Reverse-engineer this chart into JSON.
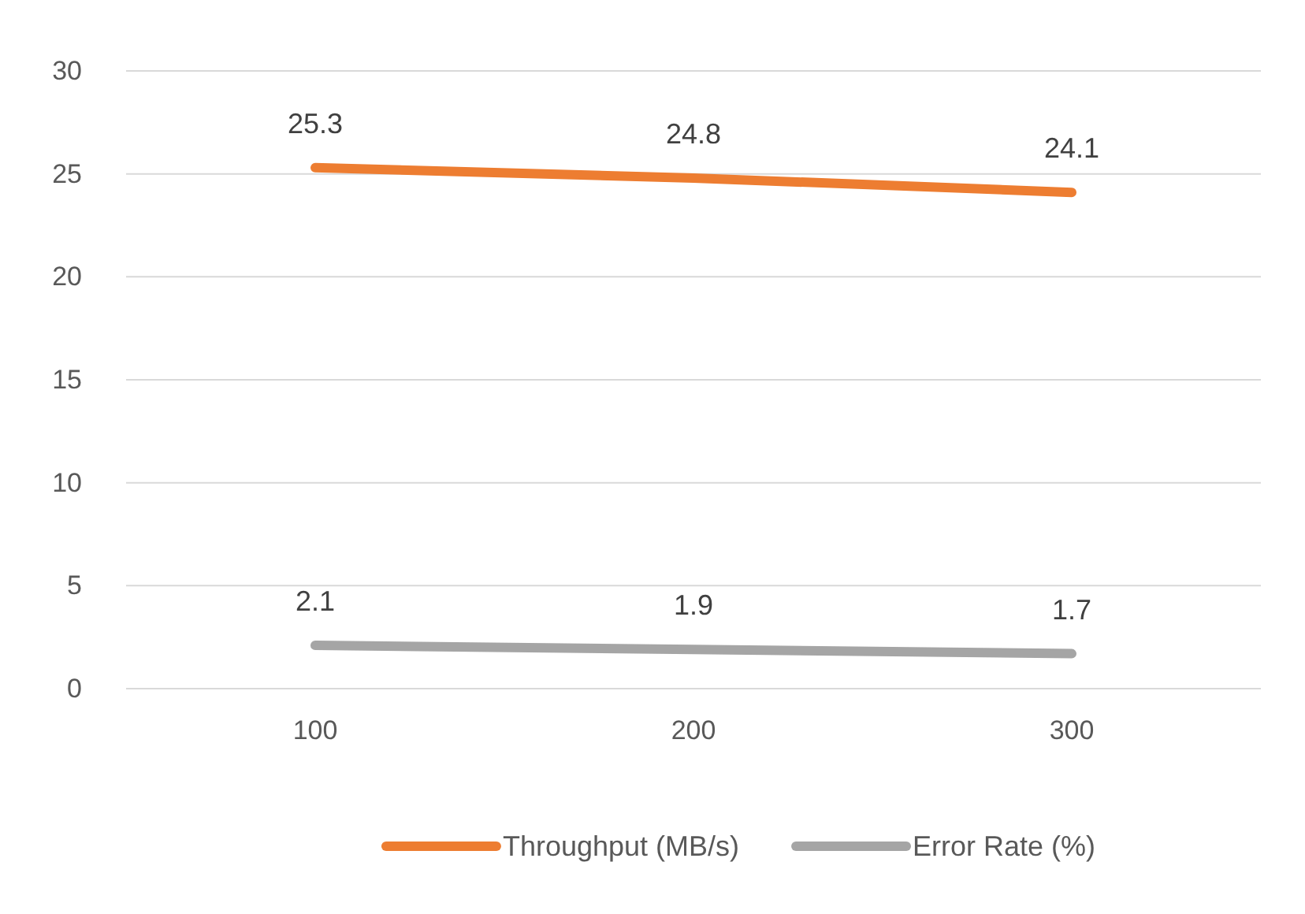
{
  "chart_data": {
    "type": "line",
    "categories": [
      "100",
      "200",
      "300"
    ],
    "series": [
      {
        "name": "Throughput (MB/s)",
        "color": "#ed7d31",
        "values": [
          25.3,
          24.8,
          24.1
        ]
      },
      {
        "name": "Error Rate (%)",
        "color": "#a5a5a5",
        "values": [
          2.1,
          1.9,
          1.7
        ]
      }
    ],
    "ylim": [
      0,
      30
    ],
    "yticks": [
      0,
      5,
      10,
      15,
      20,
      25,
      30
    ],
    "grid": "y",
    "legend": "bottom",
    "data_labels": true,
    "marker": "none",
    "line_style": "solid"
  }
}
